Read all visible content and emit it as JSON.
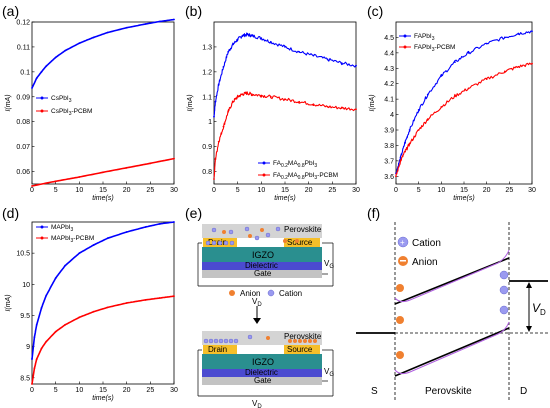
{
  "chart_data": [
    {
      "panel": "(a)",
      "type": "line",
      "xlabel": "time(s)",
      "ylabel": "I(mA)",
      "xlim": [
        0,
        30
      ],
      "ylim": [
        0.055,
        0.12
      ],
      "xticks": [
        0,
        5,
        10,
        15,
        20,
        25,
        30
      ],
      "yticks": [
        0.06,
        0.07,
        0.08,
        0.09,
        0.1,
        0.11,
        0.12
      ],
      "legend_position": "left",
      "series": [
        {
          "name": "CsPbI3",
          "name_sub": "3",
          "name_base": "CsPbI",
          "name_suffix": "",
          "color": "#0000ff",
          "x": [
            0,
            1,
            2,
            3,
            5,
            7,
            10,
            13,
            16,
            20,
            24,
            27,
            30
          ],
          "values": [
            0.0935,
            0.0975,
            0.1,
            0.1023,
            0.1058,
            0.1085,
            0.1115,
            0.1138,
            0.1158,
            0.1177,
            0.1192,
            0.1202,
            0.121
          ]
        },
        {
          "name": "CsPbI3-PCBM",
          "name_base": "CsPbI",
          "name_sub": "3",
          "name_suffix": "-PCBM",
          "color": "#ff0000",
          "x": [
            0,
            5,
            10,
            15,
            20,
            25,
            30
          ],
          "values": [
            0.0542,
            0.0561,
            0.0578,
            0.0597,
            0.0615,
            0.0633,
            0.0652
          ]
        }
      ]
    },
    {
      "panel": "(b)",
      "type": "line",
      "xlabel": "time(s)",
      "ylabel": "I(mA)",
      "xlim": [
        0,
        30
      ],
      "ylim": [
        0.75,
        1.4
      ],
      "xticks": [
        0,
        5,
        10,
        15,
        20,
        25,
        30
      ],
      "yticks": [
        0.8,
        0.9,
        1,
        1.1,
        1.2,
        1.3
      ],
      "legend_position": "bottom-right",
      "series": [
        {
          "name": "FA0.2MA0.8PbI3",
          "color": "#0000ff",
          "x": [
            0,
            0.3,
            1,
            2,
            3,
            4,
            5,
            6,
            7,
            8,
            10,
            12,
            15,
            18,
            21,
            24,
            27,
            30
          ],
          "values": [
            1.02,
            1.08,
            1.15,
            1.22,
            1.28,
            1.31,
            1.33,
            1.345,
            1.35,
            1.345,
            1.335,
            1.32,
            1.3,
            1.28,
            1.265,
            1.25,
            1.235,
            1.225
          ]
        },
        {
          "name": "FA0.2MA0.8PbI3-PCBM",
          "color": "#ff0000",
          "x": [
            0,
            0.3,
            1,
            2,
            3,
            4,
            5,
            6,
            7,
            8,
            10,
            12,
            15,
            18,
            21,
            24,
            27,
            30
          ],
          "values": [
            0.77,
            0.85,
            0.92,
            0.98,
            1.04,
            1.08,
            1.1,
            1.11,
            1.115,
            1.11,
            1.105,
            1.1,
            1.09,
            1.08,
            1.07,
            1.06,
            1.055,
            1.05
          ]
        }
      ]
    },
    {
      "panel": "(c)",
      "type": "line",
      "xlabel": "time(s)",
      "ylabel": "I(mA)",
      "xlim": [
        0,
        30
      ],
      "ylim": [
        3.55,
        4.6
      ],
      "xticks": [
        0,
        5,
        10,
        15,
        20,
        25,
        30
      ],
      "yticks": [
        3.6,
        3.7,
        3.8,
        3.9,
        4,
        4.1,
        4.2,
        4.3,
        4.4,
        4.5
      ],
      "legend_position": "top-left",
      "series": [
        {
          "name": "FAPbI3",
          "color": "#0000ff",
          "x": [
            0,
            1,
            2,
            3,
            5,
            7,
            10,
            13,
            16,
            20,
            24,
            27,
            30
          ],
          "values": [
            3.62,
            3.72,
            3.82,
            3.9,
            4.03,
            4.13,
            4.25,
            4.34,
            4.4,
            4.46,
            4.5,
            4.525,
            4.54
          ]
        },
        {
          "name": "FAPbI3-PCBM",
          "color": "#ff0000",
          "x": [
            0,
            1,
            2,
            3,
            5,
            7,
            10,
            13,
            16,
            20,
            24,
            27,
            30
          ],
          "values": [
            3.6,
            3.7,
            3.76,
            3.81,
            3.9,
            3.97,
            4.05,
            4.12,
            4.17,
            4.23,
            4.28,
            4.31,
            4.33
          ]
        }
      ]
    },
    {
      "panel": "(d)",
      "type": "line",
      "xlabel": "time(s)",
      "ylabel": "I(mA)",
      "xlim": [
        0,
        30
      ],
      "ylim": [
        8.4,
        11
      ],
      "xticks": [
        0,
        5,
        10,
        15,
        20,
        25,
        30
      ],
      "yticks": [
        8.5,
        9,
        9.5,
        10,
        10.5
      ],
      "legend_position": "top-left",
      "series": [
        {
          "name": "MAPbI3",
          "color": "#0000ff",
          "x": [
            0,
            0.5,
            1,
            2,
            3,
            5,
            7,
            10,
            13,
            16,
            20,
            24,
            27,
            30
          ],
          "values": [
            8.8,
            9.15,
            9.35,
            9.62,
            9.82,
            10.1,
            10.3,
            10.5,
            10.63,
            10.74,
            10.84,
            10.92,
            10.97,
            11.0
          ]
        },
        {
          "name": "MAPbI3-PCBM",
          "color": "#ff0000",
          "x": [
            0,
            0.5,
            1,
            2,
            3,
            5,
            7,
            10,
            13,
            16,
            20,
            24,
            27,
            30
          ],
          "values": [
            8.4,
            8.65,
            8.8,
            8.97,
            9.08,
            9.24,
            9.35,
            9.47,
            9.56,
            9.63,
            9.7,
            9.75,
            9.78,
            9.81
          ]
        }
      ]
    }
  ],
  "panel_labels": {
    "a": "(a)",
    "b": "(b)",
    "c": "(c)",
    "d": "(d)",
    "e": "(e)",
    "f": "(f)"
  },
  "legend_labels": {
    "a1_base": "CsPbI",
    "a1_sub": "3",
    "a2_base": "CsPbI",
    "a2_sub": "3",
    "a2_suffix": "-PCBM",
    "b1_p1": "FA",
    "b1_s1": "0.2",
    "b1_p2": "MA",
    "b1_s2": "0.8",
    "b1_p3": "PbI",
    "b1_s3": "3",
    "b2_suffix": "-PCBM",
    "c1_base": "FAPbI",
    "c1_sub": "3",
    "c2_base": "FAPbI",
    "c2_sub": "3",
    "c2_suffix": "-PCBM",
    "d1_base": "MAPbI",
    "d1_sub": "3",
    "d2_base": "MAPbI",
    "d2_sub": "3",
    "d2_suffix": "-PCBM"
  },
  "diagram_e": {
    "perovskite": "Perovskite",
    "drain": "Drain",
    "source": "Source",
    "igzo": "IGZO",
    "dielectric": "Dielectric",
    "gate": "Gate",
    "vg": "V",
    "vg_sub": "G",
    "vd": "V",
    "vd_sub": "D",
    "anion": "Anion",
    "cation": "Cation",
    "colors": {
      "perovskite": "#d4d4d4",
      "electrode": "#f6bf2a",
      "igzo": "#2a8f8f",
      "dielectric": "#4b4bd0",
      "gate": "#c3c3c3"
    }
  },
  "diagram_f": {
    "cation": "Cation",
    "anion": "Anion",
    "vd": "V",
    "vd_sub": "D",
    "s": "S",
    "d": "D",
    "perovskite": "Perovskite"
  }
}
